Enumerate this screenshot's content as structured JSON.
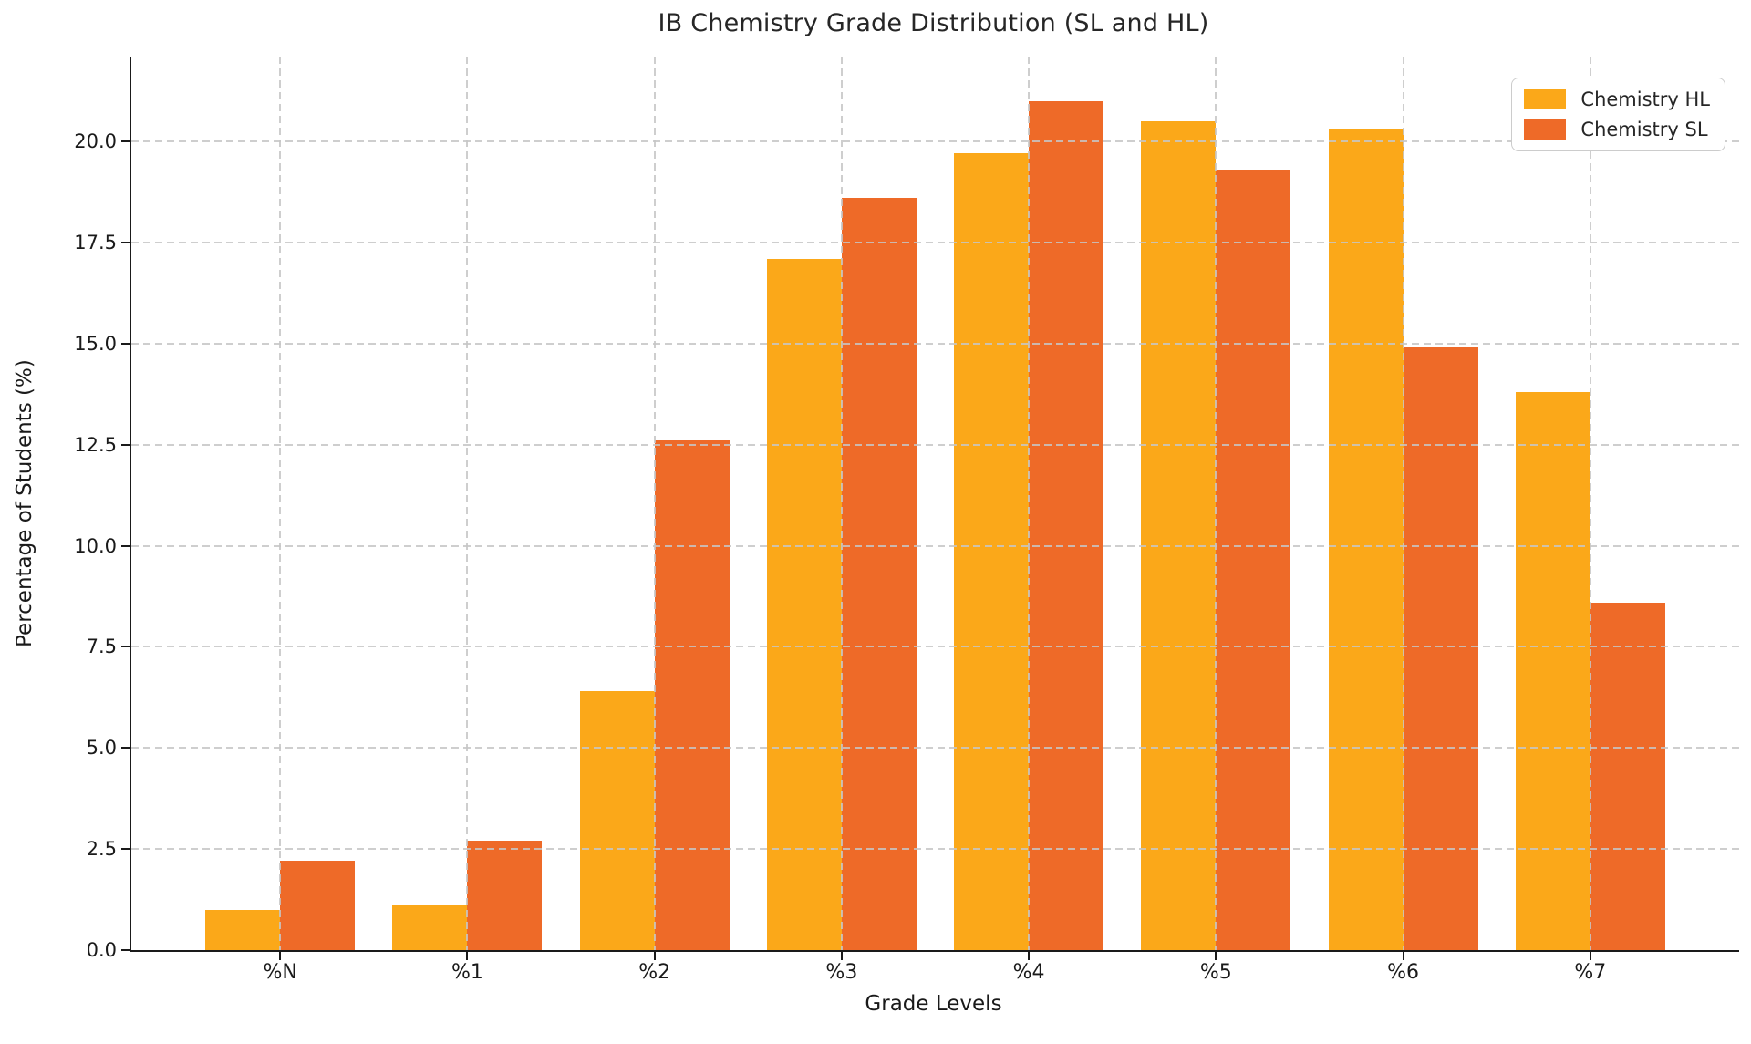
{
  "chart_data": {
    "type": "bar",
    "title": "IB Chemistry Grade Distribution (SL and HL)",
    "xlabel": "Grade Levels",
    "ylabel": "Percentage of Students (%)",
    "categories": [
      "%N",
      "%1",
      "%2",
      "%3",
      "%4",
      "%5",
      "%6",
      "%7"
    ],
    "series": [
      {
        "name": "Chemistry HL",
        "color": "#FBA819",
        "values": [
          1.0,
          1.1,
          6.4,
          17.1,
          19.7,
          20.5,
          20.3,
          13.8
        ]
      },
      {
        "name": "Chemistry SL",
        "color": "#EE6A28",
        "values": [
          2.2,
          2.7,
          12.6,
          18.6,
          21.0,
          19.3,
          14.9,
          8.6
        ]
      }
    ],
    "ylim": [
      0,
      22.1
    ],
    "yticks": [
      0.0,
      2.5,
      5.0,
      7.5,
      10.0,
      12.5,
      15.0,
      17.5,
      20.0
    ],
    "ytick_labels": [
      "0.0",
      "2.5",
      "5.0",
      "7.5",
      "10.0",
      "12.5",
      "15.0",
      "17.5",
      "20.0"
    ],
    "grid": "dashed",
    "legend_position": "upper right",
    "bar_width_fraction": 0.4
  }
}
